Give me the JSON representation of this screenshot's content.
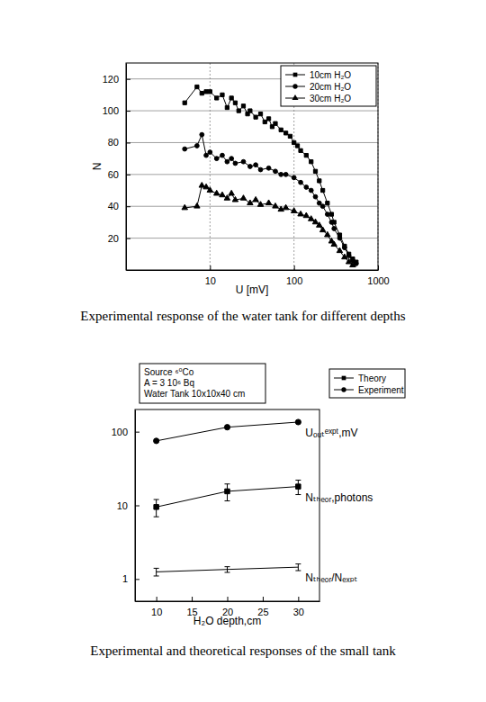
{
  "chart_data": [
    {
      "type": "line",
      "title": "Experimental response of the water tank for different depths",
      "x_label": "U [mV]",
      "y_label": "N",
      "log": "x",
      "grid": true,
      "legend": "upper right",
      "xlim": [
        1,
        1000
      ],
      "xticks": [
        10,
        100,
        1000
      ],
      "ylim": [
        0,
        130
      ],
      "yticks": [
        20,
        40,
        60,
        80,
        100,
        120
      ],
      "series": [
        {
          "name": "10cm H₂O",
          "color": "#000000",
          "marker": "square",
          "x": [
            5,
            7,
            8,
            9,
            10,
            12,
            14,
            16,
            18,
            20,
            22,
            25,
            28,
            30,
            35,
            40,
            45,
            50,
            55,
            60,
            70,
            80,
            90,
            100,
            110,
            120,
            140,
            160,
            180,
            200,
            220,
            250,
            280,
            300,
            350,
            400,
            450,
            500,
            550
          ],
          "values": [
            105,
            115,
            111,
            112,
            112,
            108,
            110,
            102,
            108,
            105,
            100,
            103,
            98,
            100,
            96,
            98,
            93,
            95,
            90,
            92,
            88,
            86,
            84,
            80,
            78,
            75,
            72,
            68,
            62,
            56,
            50,
            42,
            35,
            30,
            22,
            15,
            10,
            7,
            5
          ]
        },
        {
          "name": "20cm H₂O",
          "color": "#000000",
          "marker": "circle",
          "x": [
            5,
            7,
            8,
            9,
            10,
            12,
            14,
            16,
            18,
            20,
            25,
            30,
            35,
            40,
            50,
            60,
            70,
            80,
            100,
            120,
            140,
            160,
            180,
            200,
            220,
            250,
            280,
            300,
            350,
            400,
            450,
            500,
            550
          ],
          "values": [
            76,
            78,
            85,
            72,
            74,
            70,
            72,
            68,
            70,
            67,
            68,
            65,
            66,
            63,
            64,
            62,
            60,
            60,
            58,
            55,
            52,
            50,
            46,
            42,
            40,
            35,
            30,
            26,
            20,
            14,
            9,
            6,
            4
          ]
        },
        {
          "name": "30cm H₂O",
          "color": "#000000",
          "marker": "triangle",
          "x": [
            5,
            7,
            8,
            9,
            10,
            12,
            14,
            16,
            18,
            20,
            25,
            30,
            35,
            40,
            50,
            60,
            70,
            80,
            100,
            120,
            140,
            160,
            180,
            200,
            220,
            250,
            280,
            300,
            350,
            400,
            450,
            500
          ],
          "values": [
            39,
            40,
            53,
            52,
            50,
            48,
            47,
            45,
            48,
            44,
            45,
            42,
            44,
            41,
            42,
            40,
            38,
            39,
            37,
            35,
            34,
            32,
            30,
            28,
            25,
            22,
            18,
            16,
            12,
            8,
            5,
            3
          ]
        }
      ]
    },
    {
      "type": "line",
      "title": "Experimental and theoretical responses of the small tank",
      "x_label": "H₂O depth,cm",
      "log": "y",
      "grid": false,
      "legend": "upper right",
      "text_box": [
        "Source ⁶⁰Co",
        "A = 3 10⁶ Bq",
        "Water Tank 10x10x40 cm"
      ],
      "annotations": [
        "Nₜₕₑₒᵣ,photons",
        "Uₒᵤₜᵉˣᵖᵗ,mV",
        "Nₜₕₑₒᵣ/Nₑₓₚₜ"
      ],
      "xlim": [
        7,
        33
      ],
      "xticks": [
        10,
        15,
        20,
        25,
        30
      ],
      "ylim": [
        0.5,
        200
      ],
      "yticks": [
        1,
        10,
        100
      ],
      "x": [
        10,
        20,
        30
      ],
      "series": [
        {
          "name": "Theory",
          "color": "#000000",
          "marker": "square",
          "values": [
            9.5,
            15.5,
            18
          ],
          "errors": [
            2.5,
            4,
            4
          ]
        },
        {
          "name": "Experiment",
          "color": "#000000",
          "marker": "circle",
          "values": [
            75,
            115,
            135
          ]
        },
        {
          "color": "#000000",
          "marker": "none",
          "values": [
            1.25,
            1.35,
            1.45
          ],
          "errors": [
            0.15,
            0.12,
            0.15
          ]
        }
      ]
    }
  ]
}
